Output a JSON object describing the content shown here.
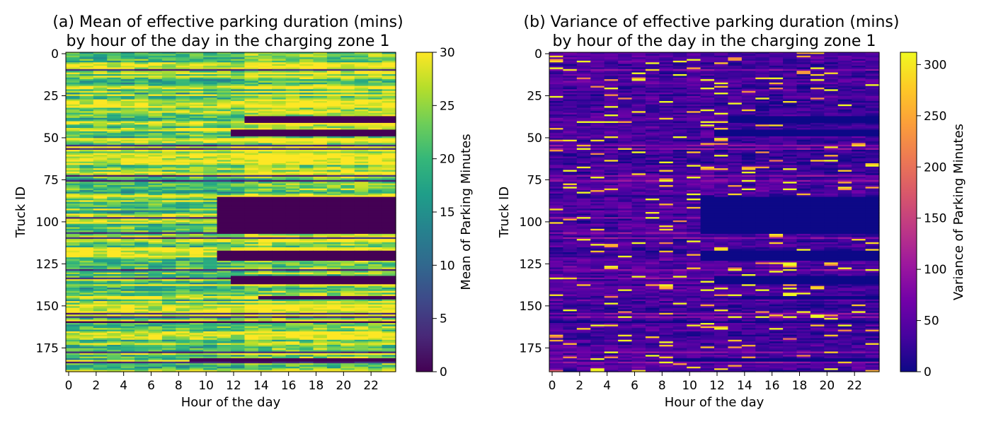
{
  "chart_data": [
    {
      "type": "heatmap",
      "title": [
        "(a) Mean of effective parking duration (mins)",
        "by hour of the day in the charging zone 1"
      ],
      "xlabel": "Hour of the day",
      "ylabel": "Truck ID",
      "colorbar_label": "Mean of Parking Minutes",
      "colormap": "viridis",
      "x_ticks": [
        0,
        2,
        4,
        6,
        8,
        10,
        12,
        14,
        16,
        18,
        20,
        22
      ],
      "y_ticks": [
        0,
        25,
        50,
        75,
        100,
        125,
        150,
        175
      ],
      "colorbar_ticks": [
        0,
        5,
        10,
        15,
        20,
        25,
        30
      ],
      "xlim": [
        0,
        24
      ],
      "ylim": [
        0,
        190
      ],
      "vlim": [
        0,
        30
      ],
      "n_trucks": 190,
      "n_hours": 24,
      "row_profiles_note": "approximate per-row patterns; many rows near 20-30 min, some rows drop to 0 after ~12-16h",
      "dropout_rows": [
        [
          38,
          42,
          13
        ],
        [
          46,
          50,
          12
        ],
        [
          86,
          108,
          11
        ],
        [
          118,
          124,
          11
        ],
        [
          133,
          138,
          12
        ],
        [
          160,
          161,
          0
        ],
        [
          182,
          184,
          9
        ],
        [
          145,
          147,
          14
        ]
      ],
      "bright_rows": [
        [
          6,
          11
        ],
        [
          29,
          31
        ],
        [
          62,
          66
        ],
        [
          71,
          74
        ],
        [
          109,
          113
        ],
        [
          152,
          156
        ],
        [
          166,
          170
        ]
      ]
    },
    {
      "type": "heatmap",
      "title": [
        "(b) Variance of effective parking duration (mins)",
        "by hour of the day in the charging zone 1"
      ],
      "xlabel": "Hour of the day",
      "ylabel": "Truck ID",
      "colorbar_label": "Variance of Parking Minutes",
      "colormap": "plasma",
      "x_ticks": [
        0,
        2,
        4,
        6,
        8,
        10,
        12,
        14,
        16,
        18,
        20,
        22
      ],
      "y_ticks": [
        0,
        25,
        50,
        75,
        100,
        125,
        150,
        175
      ],
      "colorbar_ticks": [
        0,
        50,
        100,
        150,
        200,
        250,
        300
      ],
      "xlim": [
        0,
        24
      ],
      "ylim": [
        0,
        190
      ],
      "vlim": [
        0,
        312
      ],
      "n_trucks": 190,
      "n_hours": 24
    }
  ]
}
